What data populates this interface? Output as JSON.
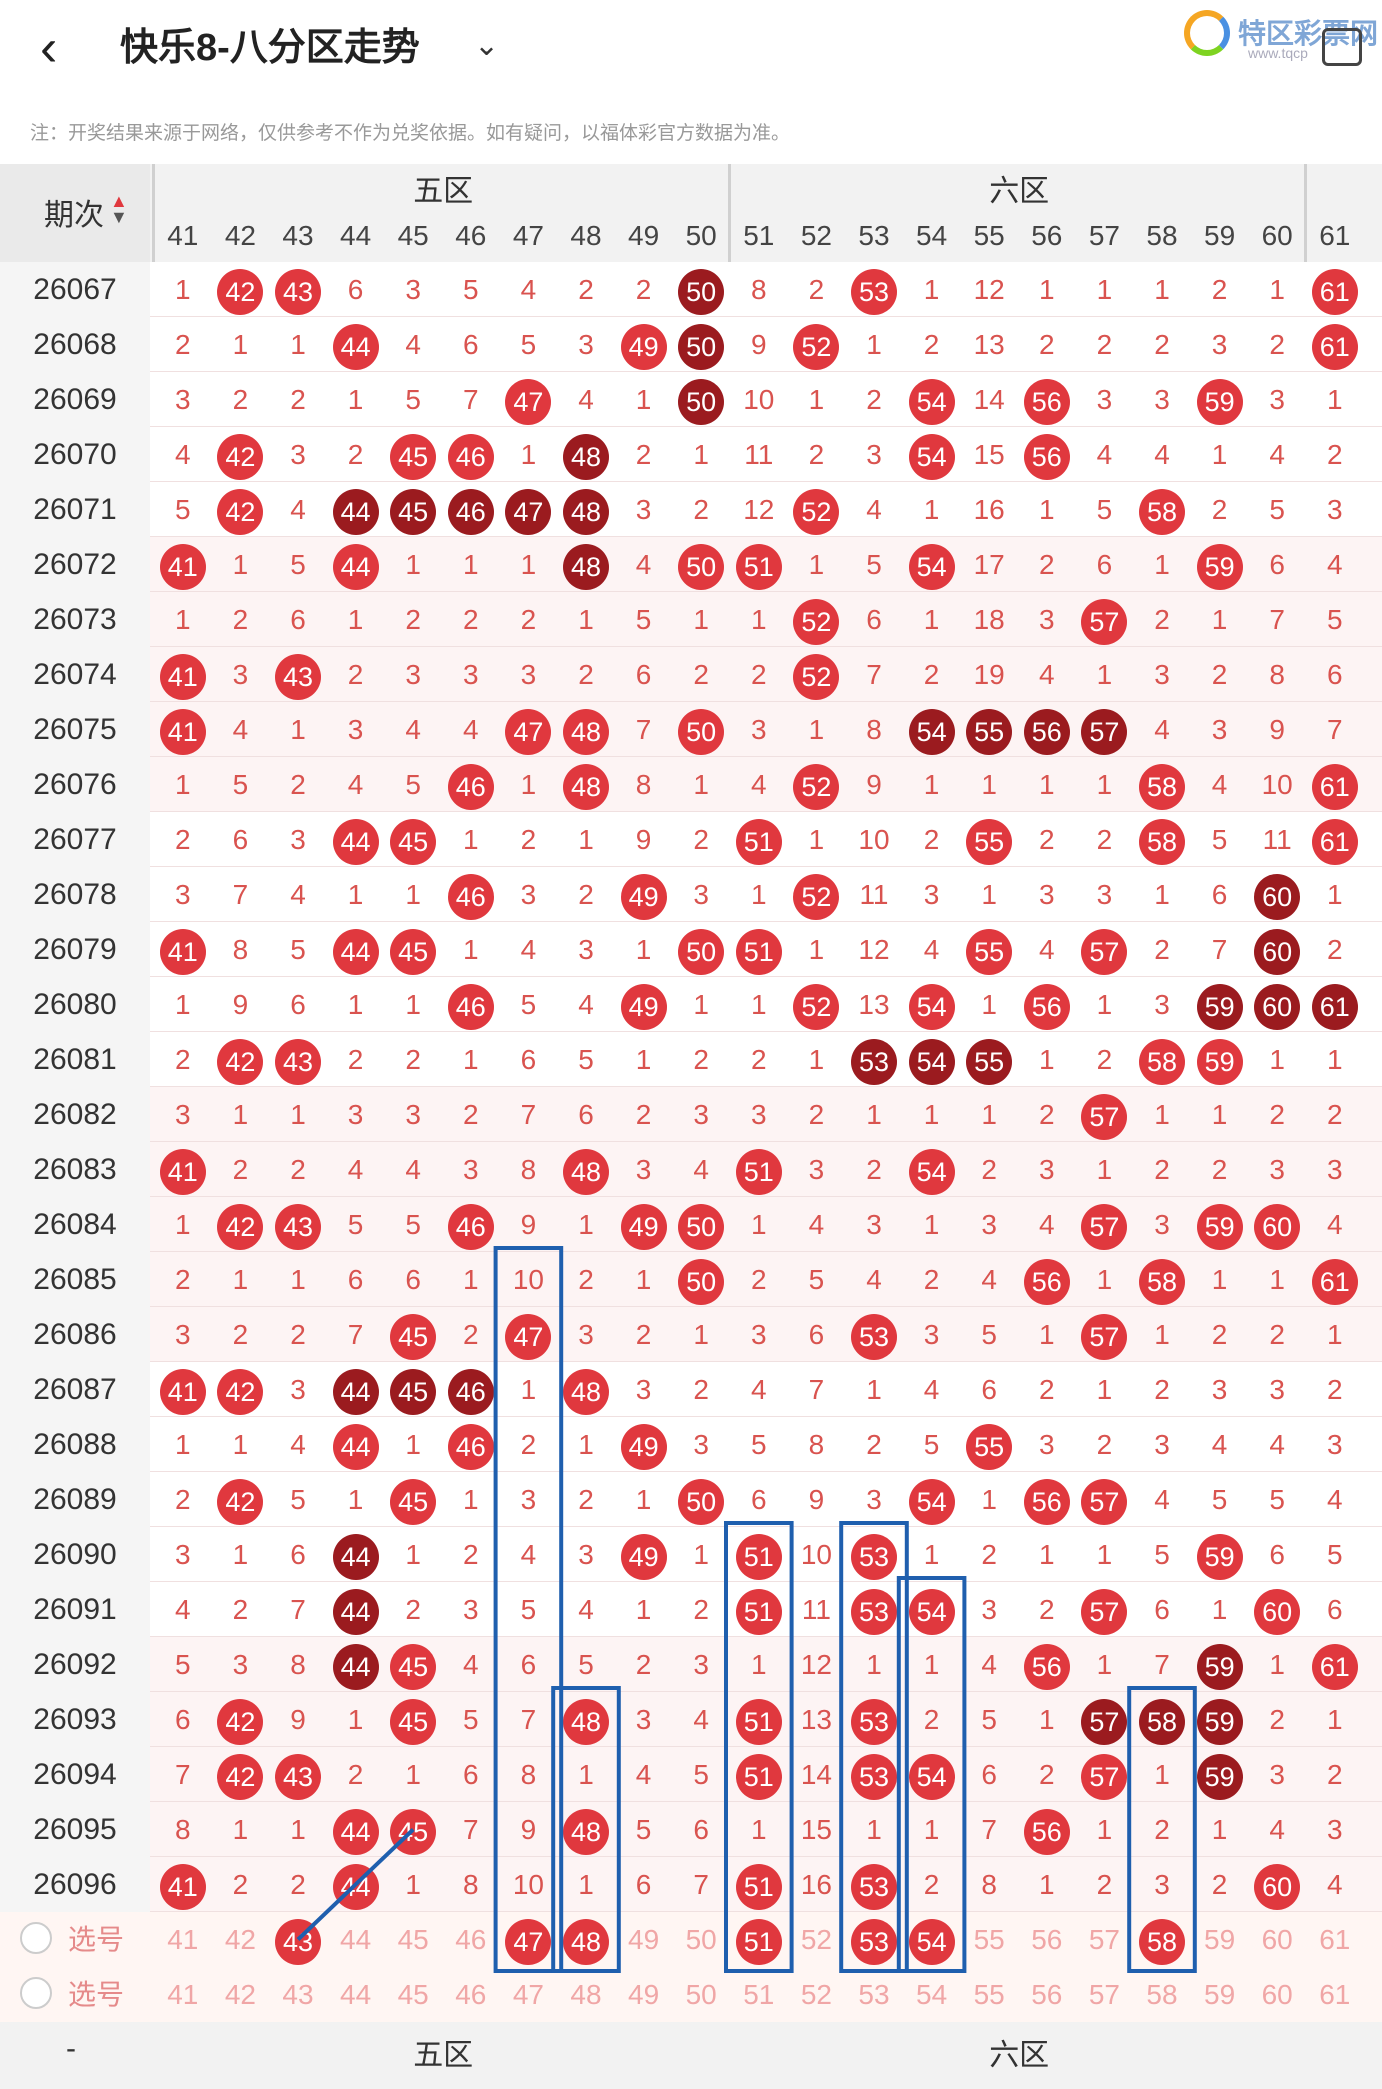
{
  "header": {
    "back_icon": "chevron-left-icon",
    "title": "快乐8-八分区走势",
    "dropdown_icon": "chevron-down-icon",
    "logo_text": "特区彩票网",
    "logo_url_text": "www.tqcp",
    "screenshot_icon": "screen-copy-icon"
  },
  "note": "注：开奖结果来源于网络，仅供参考不作为兑奖依据。如有疑问，以福体彩官方数据为准。",
  "table": {
    "period_header": "期次",
    "sort_icon": "sort-updown-icon",
    "zone_labels": [
      "五区",
      "六区"
    ],
    "columns": [
      "41",
      "42",
      "43",
      "44",
      "45",
      "46",
      "47",
      "48",
      "49",
      "50",
      "51",
      "52",
      "53",
      "54",
      "55",
      "56",
      "57",
      "58",
      "59",
      "60",
      "61"
    ],
    "select_label": "选号",
    "dash": "-",
    "rows": [
      {
        "issue": "26067",
        "cells": [
          "1",
          "42*",
          "43*",
          "6",
          "3",
          "5",
          "4",
          "2",
          "2",
          "50#",
          "8",
          "2",
          "53*",
          "1",
          "12",
          "1",
          "1",
          "1",
          "2",
          "1",
          "61*"
        ]
      },
      {
        "issue": "26068",
        "cells": [
          "2",
          "1",
          "1",
          "44*",
          "4",
          "6",
          "5",
          "3",
          "49*",
          "50#",
          "9",
          "52*",
          "1",
          "2",
          "13",
          "2",
          "2",
          "2",
          "3",
          "2",
          "61*"
        ]
      },
      {
        "issue": "26069",
        "cells": [
          "3",
          "2",
          "2",
          "1",
          "5",
          "7",
          "47*",
          "4",
          "1",
          "50#",
          "10",
          "1",
          "2",
          "54*",
          "14",
          "56*",
          "3",
          "3",
          "59*",
          "3",
          "1"
        ]
      },
      {
        "issue": "26070",
        "cells": [
          "4",
          "42*",
          "3",
          "2",
          "45*",
          "46*",
          "1",
          "48#",
          "2",
          "1",
          "11",
          "2",
          "3",
          "54*",
          "15",
          "56*",
          "4",
          "4",
          "1",
          "4",
          "2"
        ]
      },
      {
        "issue": "26071",
        "cells": [
          "5",
          "42*",
          "4",
          "44#",
          "45#",
          "46#",
          "47#",
          "48#",
          "3",
          "2",
          "12",
          "52*",
          "4",
          "1",
          "16",
          "1",
          "5",
          "58*",
          "2",
          "5",
          "3"
        ]
      },
      {
        "issue": "26072",
        "cells": [
          "41*",
          "1",
          "5",
          "44*",
          "1",
          "1",
          "1",
          "48#",
          "4",
          "50*",
          "51*",
          "1",
          "5",
          "54*",
          "17",
          "2",
          "6",
          "1",
          "59*",
          "6",
          "4"
        ]
      },
      {
        "issue": "26073",
        "cells": [
          "1",
          "2",
          "6",
          "1",
          "2",
          "2",
          "2",
          "1",
          "5",
          "1",
          "1",
          "52*",
          "6",
          "1",
          "18",
          "3",
          "57*",
          "2",
          "1",
          "7",
          "5"
        ]
      },
      {
        "issue": "26074",
        "cells": [
          "41*",
          "3",
          "43*",
          "2",
          "3",
          "3",
          "3",
          "2",
          "6",
          "2",
          "2",
          "52*",
          "7",
          "2",
          "19",
          "4",
          "1",
          "3",
          "2",
          "8",
          "6"
        ]
      },
      {
        "issue": "26075",
        "cells": [
          "41*",
          "4",
          "1",
          "3",
          "4",
          "4",
          "47*",
          "48*",
          "7",
          "50*",
          "3",
          "1",
          "8",
          "54#",
          "55#",
          "56#",
          "57#",
          "4",
          "3",
          "9",
          "7"
        ]
      },
      {
        "issue": "26076",
        "cells": [
          "1",
          "5",
          "2",
          "4",
          "5",
          "46*",
          "1",
          "48*",
          "8",
          "1",
          "4",
          "52*",
          "9",
          "1",
          "1",
          "1",
          "1",
          "58*",
          "4",
          "10",
          "61*"
        ]
      },
      {
        "issue": "26077",
        "cells": [
          "2",
          "6",
          "3",
          "44*",
          "45*",
          "1",
          "2",
          "1",
          "9",
          "2",
          "51*",
          "1",
          "10",
          "2",
          "55*",
          "2",
          "2",
          "58*",
          "5",
          "11",
          "61*"
        ]
      },
      {
        "issue": "26078",
        "cells": [
          "3",
          "7",
          "4",
          "1",
          "1",
          "46*",
          "3",
          "2",
          "49*",
          "3",
          "1",
          "52*",
          "11",
          "3",
          "1",
          "3",
          "3",
          "1",
          "6",
          "60#",
          "1"
        ]
      },
      {
        "issue": "26079",
        "cells": [
          "41*",
          "8",
          "5",
          "44*",
          "45*",
          "1",
          "4",
          "3",
          "1",
          "50*",
          "51*",
          "1",
          "12",
          "4",
          "55*",
          "4",
          "57*",
          "2",
          "7",
          "60#",
          "2"
        ]
      },
      {
        "issue": "26080",
        "cells": [
          "1",
          "9",
          "6",
          "1",
          "1",
          "46*",
          "5",
          "4",
          "49*",
          "1",
          "1",
          "52*",
          "13",
          "54*",
          "1",
          "56*",
          "1",
          "3",
          "59#",
          "60#",
          "61#"
        ]
      },
      {
        "issue": "26081",
        "cells": [
          "2",
          "42*",
          "43*",
          "2",
          "2",
          "1",
          "6",
          "5",
          "1",
          "2",
          "2",
          "1",
          "53#",
          "54#",
          "55#",
          "1",
          "2",
          "58*",
          "59*",
          "1",
          "1"
        ]
      },
      {
        "issue": "26082",
        "cells": [
          "3",
          "1",
          "1",
          "3",
          "3",
          "2",
          "7",
          "6",
          "2",
          "3",
          "3",
          "2",
          "1",
          "1",
          "1",
          "2",
          "57*",
          "1",
          "1",
          "2",
          "2"
        ]
      },
      {
        "issue": "26083",
        "cells": [
          "41*",
          "2",
          "2",
          "4",
          "4",
          "3",
          "8",
          "48*",
          "3",
          "4",
          "51*",
          "3",
          "2",
          "54*",
          "2",
          "3",
          "1",
          "2",
          "2",
          "3",
          "3"
        ]
      },
      {
        "issue": "26084",
        "cells": [
          "1",
          "42*",
          "43*",
          "5",
          "5",
          "46*",
          "9",
          "1",
          "49*",
          "50*",
          "1",
          "4",
          "3",
          "1",
          "3",
          "4",
          "57*",
          "3",
          "59*",
          "60*",
          "4"
        ]
      },
      {
        "issue": "26085",
        "cells": [
          "2",
          "1",
          "1",
          "6",
          "6",
          "1",
          "10",
          "2",
          "1",
          "50*",
          "2",
          "5",
          "4",
          "2",
          "4",
          "56*",
          "1",
          "58*",
          "1",
          "1",
          "61*"
        ]
      },
      {
        "issue": "26086",
        "cells": [
          "3",
          "2",
          "2",
          "7",
          "45*",
          "2",
          "47*",
          "3",
          "2",
          "1",
          "3",
          "6",
          "53*",
          "3",
          "5",
          "1",
          "57*",
          "1",
          "2",
          "2",
          "1"
        ]
      },
      {
        "issue": "26087",
        "cells": [
          "41*",
          "42*",
          "3",
          "44#",
          "45#",
          "46#",
          "1",
          "48*",
          "3",
          "2",
          "4",
          "7",
          "1",
          "4",
          "6",
          "2",
          "1",
          "2",
          "3",
          "3",
          "2"
        ]
      },
      {
        "issue": "26088",
        "cells": [
          "1",
          "1",
          "4",
          "44*",
          "1",
          "46*",
          "2",
          "1",
          "49*",
          "3",
          "5",
          "8",
          "2",
          "5",
          "55*",
          "3",
          "2",
          "3",
          "4",
          "4",
          "3"
        ]
      },
      {
        "issue": "26089",
        "cells": [
          "2",
          "42*",
          "5",
          "1",
          "45*",
          "1",
          "3",
          "2",
          "1",
          "50*",
          "6",
          "9",
          "3",
          "54*",
          "1",
          "56*",
          "57*",
          "4",
          "5",
          "5",
          "4"
        ]
      },
      {
        "issue": "26090",
        "cells": [
          "3",
          "1",
          "6",
          "44#",
          "1",
          "2",
          "4",
          "3",
          "49*",
          "1",
          "51*",
          "10",
          "53*",
          "1",
          "2",
          "1",
          "1",
          "5",
          "59*",
          "6",
          "5"
        ]
      },
      {
        "issue": "26091",
        "cells": [
          "4",
          "2",
          "7",
          "44#",
          "2",
          "3",
          "5",
          "4",
          "1",
          "2",
          "51*",
          "11",
          "53*",
          "54*",
          "3",
          "2",
          "57*",
          "6",
          "1",
          "60*",
          "6"
        ]
      },
      {
        "issue": "26092",
        "cells": [
          "5",
          "3",
          "8",
          "44#",
          "45*",
          "4",
          "6",
          "5",
          "2",
          "3",
          "1",
          "12",
          "1",
          "1",
          "4",
          "56*",
          "1",
          "7",
          "59#",
          "1",
          "61*"
        ]
      },
      {
        "issue": "26093",
        "cells": [
          "6",
          "42*",
          "9",
          "1",
          "45*",
          "5",
          "7",
          "48*",
          "3",
          "4",
          "51*",
          "13",
          "53*",
          "2",
          "5",
          "1",
          "57#",
          "58#",
          "59#",
          "2",
          "1"
        ]
      },
      {
        "issue": "26094",
        "cells": [
          "7",
          "42*",
          "43*",
          "2",
          "1",
          "6",
          "8",
          "1",
          "4",
          "5",
          "51*",
          "14",
          "53*",
          "54*",
          "6",
          "2",
          "57*",
          "1",
          "59#",
          "3",
          "2"
        ]
      },
      {
        "issue": "26095",
        "cells": [
          "8",
          "1",
          "1",
          "44*",
          "45*",
          "7",
          "9",
          "48*",
          "5",
          "6",
          "1",
          "15",
          "1",
          "1",
          "7",
          "56*",
          "1",
          "2",
          "1",
          "4",
          "3"
        ]
      },
      {
        "issue": "26096",
        "cells": [
          "41*",
          "2",
          "2",
          "44*",
          "1",
          "8",
          "10",
          "1",
          "6",
          "7",
          "51*",
          "16",
          "53*",
          "2",
          "8",
          "1",
          "2",
          "3",
          "2",
          "60*",
          "4"
        ]
      }
    ],
    "select_row_1": [
      "41",
      "42",
      "43*",
      "44",
      "45",
      "46",
      "47*",
      "48*",
      "49",
      "50",
      "51*",
      "52",
      "53*",
      "54*",
      "55",
      "56",
      "57",
      "58*",
      "59",
      "60",
      "61"
    ],
    "select_row_2": [
      "41",
      "42",
      "43",
      "44",
      "45",
      "46",
      "47",
      "48",
      "49",
      "50",
      "51",
      "52",
      "53",
      "54",
      "55",
      "56",
      "57",
      "58",
      "59",
      "60",
      "61"
    ],
    "bottom_zone_labels": [
      "五区",
      "六区"
    ]
  },
  "colors": {
    "ball_red": "#e0383e",
    "ball_dark": "#9b1b1f",
    "highlight_box": "#1f5fae",
    "zone_band_pink": "#fdf0f0"
  }
}
